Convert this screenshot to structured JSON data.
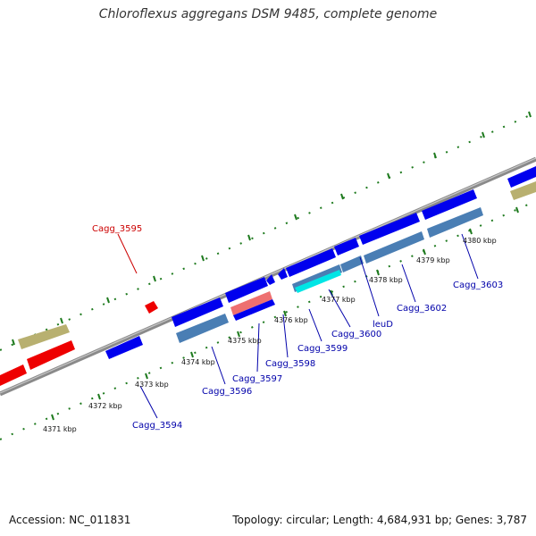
{
  "title": "Chloroflexus aggregans DSM 9485, complete genome",
  "footer": {
    "accession": "Accession: NC_011831",
    "summary": "Topology: circular; Length: 4,684,931 bp; Genes: 3,787"
  },
  "colors": {
    "blue_gene": "#0000ee",
    "red_gene": "#ee0000",
    "khaki_gene": "#b8b070",
    "steel_cds": "#4a7eb4",
    "cyan_cds": "#00e5e5",
    "pink_cds": "#ee7070",
    "backbone": "#8a8a8a",
    "tick": "#1e7a1e",
    "blue_label": "#0000aa",
    "red_label": "#cc0000"
  },
  "kbp_labels": [
    "4371 kbp",
    "4372 kbp",
    "4373 kbp",
    "4374 kbp",
    "4375 kbp",
    "4376 kbp",
    "4377 kbp",
    "4378 kbp",
    "4379 kbp",
    "4380 kbp"
  ],
  "gene_labels": {
    "cagg_3595": "Cagg_3595",
    "cagg_3594": "Cagg_3594",
    "cagg_3596": "Cagg_3596",
    "cagg_3597": "Cagg_3597",
    "cagg_3598": "Cagg_3598",
    "cagg_3599": "Cagg_3599",
    "cagg_3600": "Cagg_3600",
    "leud": "leuD",
    "cagg_3602": "Cagg_3602",
    "cagg_3603": "Cagg_3603"
  }
}
